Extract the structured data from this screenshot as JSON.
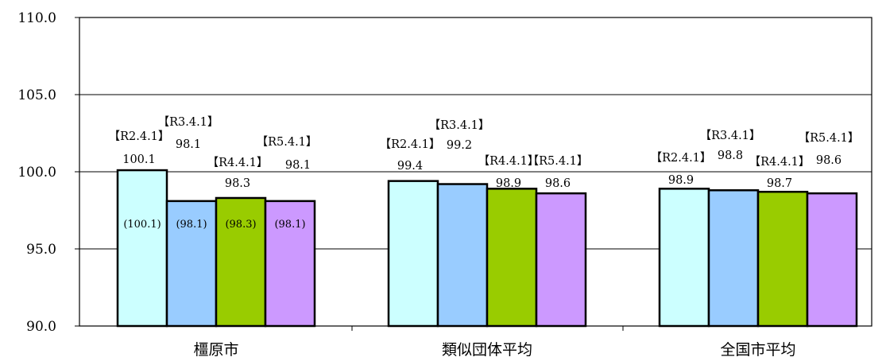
{
  "chart_data": {
    "type": "bar",
    "categories": [
      "橿原市",
      "類似団体平均",
      "全国市平均"
    ],
    "series": [
      {
        "name": "【R2.4.1】",
        "color": "#CCFFFF"
      },
      {
        "name": "【R3.4.1】",
        "color": "#99CCFF"
      },
      {
        "name": "【R4.4.1】",
        "color": "#99CC00"
      },
      {
        "name": "【R5.4.1】",
        "color": "#CC99FF"
      }
    ],
    "values": [
      [
        100.1,
        98.1,
        98.3,
        98.1
      ],
      [
        99.4,
        99.2,
        98.9,
        98.6
      ],
      [
        98.9,
        98.8,
        98.7,
        98.6
      ]
    ],
    "labels": [
      [
        "100.1",
        "98.1",
        "98.3",
        "98.1"
      ],
      [
        "99.4",
        "99.2",
        "98.9",
        "98.6"
      ],
      [
        "98.9",
        "98.8",
        "98.7",
        "98.6"
      ]
    ],
    "inner_labels": [
      [
        "(100.1)",
        "(98.1)",
        "(98.3)",
        "(98.1)"
      ],
      [
        "",
        "",
        "",
        ""
      ],
      [
        "",
        "",
        "",
        ""
      ]
    ],
    "ylim": [
      90.0,
      110.0
    ],
    "yticks": [
      "90.0",
      "95.0",
      "100.0",
      "105.0",
      "110.0"
    ],
    "ytick_values": [
      90,
      95,
      100,
      105,
      110
    ],
    "grid": true,
    "title": "",
    "xlabel": "",
    "ylabel": ""
  }
}
